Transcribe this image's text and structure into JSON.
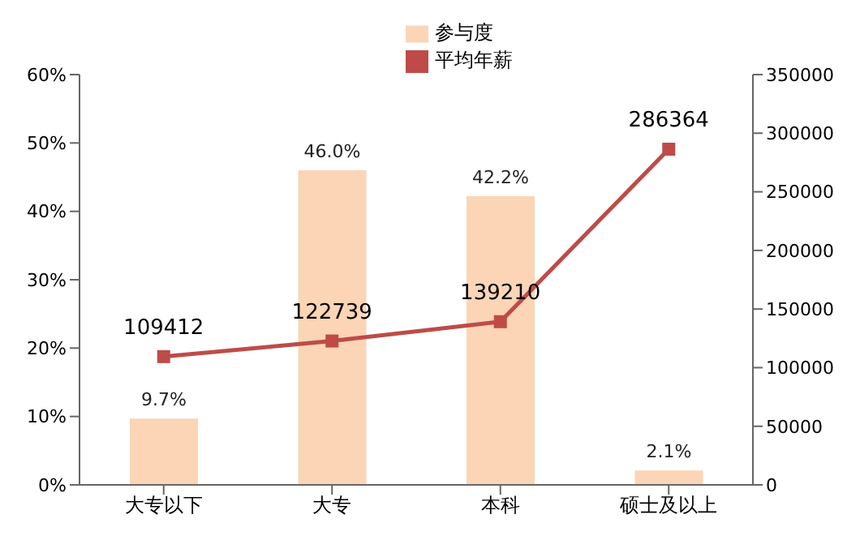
{
  "chart_data": {
    "type": "bar",
    "categories": [
      "大专以下",
      "大专",
      "本科",
      "硕士及以上"
    ],
    "series": [
      {
        "name": "参与度",
        "color": "#fbd5b5",
        "values": [
          9.7,
          46.0,
          42.2,
          2.1
        ],
        "value_labels": [
          "9.7%",
          "46.0%",
          "42.2%",
          "2.1%"
        ]
      },
      {
        "name": "平均年薪",
        "type": "line",
        "axis": "y2",
        "color": "#be4b48",
        "values": [
          109412,
          122739,
          139210,
          286364
        ],
        "value_labels": [
          "109412",
          "122739",
          "139210",
          "286364"
        ]
      }
    ],
    "ylim": [
      0,
      60
    ],
    "yticks": [
      {
        "value": 0,
        "label": "0%"
      },
      {
        "value": 10,
        "label": "10%"
      },
      {
        "value": 20,
        "label": "20%"
      },
      {
        "value": 30,
        "label": "30%"
      },
      {
        "value": 40,
        "label": "40%"
      },
      {
        "value": 50,
        "label": "50%"
      },
      {
        "value": 60,
        "label": "60%"
      }
    ],
    "y2lim": [
      0,
      350000
    ],
    "y2ticks": [
      0,
      50000,
      100000,
      150000,
      200000,
      250000,
      300000,
      350000
    ],
    "legend": "top",
    "marker": "square",
    "grid": false
  }
}
